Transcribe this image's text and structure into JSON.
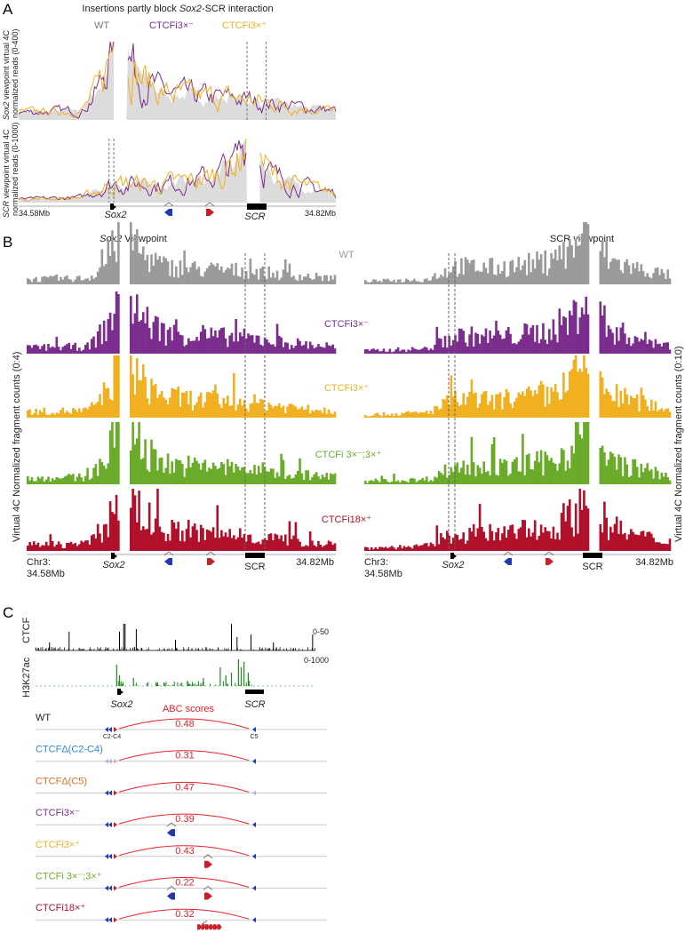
{
  "colors": {
    "wt": "#9a9a9a",
    "wt_fill": "#dcdcdc",
    "i3minus": "#7b2d8e",
    "i3plus": "#f0b020",
    "combo": "#6aab2a",
    "i18": "#b0102a",
    "abc": "#e8202a",
    "ctcf_blue": "#2438b0",
    "ctcf_red": "#c8202a",
    "d_c2c4": "#2a8ad0",
    "d_c5": "#e8682a",
    "h3k27ac": "#1e8a1e"
  },
  "panel_a": {
    "letter": "A",
    "title_pre": "Insertions partly block ",
    "title_italic": "Sox2",
    "title_post": "-SCR interaction",
    "legend": {
      "wt": "WT",
      "i3minus": "CTCFi3×⁻",
      "i3plus": "CTCFi3×⁺"
    },
    "ylabel_top_italic": "Sox2",
    "ylabel_top_rest": " viewpoint virtual 4C",
    "ylabel_top_2": "normalized reads (0-400)",
    "ylabel_bottom_italic": "SCR",
    "ylabel_bottom_rest": " viewpoint virtual 4C",
    "ylabel_bottom_2": "normalized reads (0-1000)",
    "x_start": "34.58Mb",
    "x_end": "34.82Mb",
    "gene_sox2": "Sox2",
    "gene_scr": "SCR"
  },
  "panel_b": {
    "letter": "B",
    "left_title_italic": "Sox2",
    "left_title_rest": " Viewpoint",
    "right_title": "SCR viewpoint",
    "tracks": [
      "WT",
      "CTCFi3×⁻",
      "CTCFi3×⁺",
      "CTCFi 3×⁻;3×⁺",
      "CTCFi18×⁺"
    ],
    "ylabel_left": "Virtual 4C Normalized fragment counts (0:4)",
    "ylabel_right": "Virtual 4C Normalized fragment counts (0:10)",
    "chr": "Chr3:",
    "x_start": "34.58Mb",
    "x_end": "34.82Mb",
    "gene_sox2": "Sox2",
    "gene_scr": "SCR"
  },
  "panel_c": {
    "letter": "C",
    "track_ctcf": "CTCF",
    "track_ctcf_range": "0-50",
    "track_h3k27ac": "H3K27ac",
    "track_h3k27ac_range": "0-1000",
    "gene_sox2": "Sox2",
    "gene_scr": "SCR",
    "abc_title": "ABC scores",
    "site_left": "C2-C4",
    "site_right": "C5",
    "rows": [
      {
        "label": "WT",
        "score": "0.48"
      },
      {
        "label": "CTCFΔ(C2-C4)",
        "score": "0.31"
      },
      {
        "label": "CTCFΔ(C5)",
        "score": "0.47"
      },
      {
        "label": "CTCFi3×⁻",
        "score": "0.39"
      },
      {
        "label": "CTCFi3×⁺",
        "score": "0.43"
      },
      {
        "label": "CTCFi 3×⁻;3×⁺",
        "score": "0.22"
      },
      {
        "label": "CTCFi18×⁺",
        "score": "0.32"
      }
    ]
  },
  "chart_data": [
    {
      "type": "area",
      "panel": "A-top",
      "title": "Insertions partly block Sox2-SCR interaction",
      "ylabel": "Sox2 viewpoint virtual 4C normalized reads",
      "ylim": [
        0,
        400
      ],
      "xlim_mb": [
        34.58,
        34.82
      ],
      "series": [
        "WT",
        "CTCFi3×⁻",
        "CTCFi3×⁺"
      ],
      "approx_profile_x_fraction": [
        0,
        0.2,
        0.26,
        0.3,
        0.34,
        0.37,
        0.45,
        0.55,
        0.7,
        0.85,
        1
      ],
      "approx_profile_rel": [
        0.1,
        0.12,
        0.45,
        1.0,
        1.0,
        0.6,
        0.35,
        0.3,
        0.27,
        0.18,
        0.12
      ]
    },
    {
      "type": "area",
      "panel": "A-bottom",
      "ylabel": "SCR viewpoint virtual 4C normalized reads",
      "ylim": [
        0,
        1000
      ],
      "xlim_mb": [
        34.58,
        34.82
      ],
      "series": [
        "WT",
        "CTCFi3×⁻",
        "CTCFi3×⁺"
      ],
      "approx_profile_x_fraction": [
        0,
        0.2,
        0.3,
        0.45,
        0.6,
        0.68,
        0.72,
        0.76,
        0.8,
        0.9,
        1
      ],
      "approx_profile_rel": [
        0.05,
        0.08,
        0.3,
        0.28,
        0.38,
        0.6,
        0.95,
        0.75,
        0.4,
        0.25,
        0.15
      ]
    },
    {
      "type": "bar",
      "panel": "B",
      "ylabel_left": "Virtual 4C Normalized fragment counts",
      "ylim_left": [
        0,
        4
      ],
      "ylim_right": [
        0,
        10
      ],
      "series": [
        "WT",
        "CTCFi3×⁻",
        "CTCFi3×⁺",
        "CTCFi 3×⁻;3×⁺",
        "CTCFi18×⁺"
      ]
    },
    {
      "type": "bar",
      "panel": "C",
      "title": "ABC scores",
      "categories": [
        "WT",
        "CTCFΔ(C2-C4)",
        "CTCFΔ(C5)",
        "CTCFi3×⁻",
        "CTCFi3×⁺",
        "CTCFi 3×⁻;3×⁺",
        "CTCFi18×⁺"
      ],
      "values": [
        0.48,
        0.31,
        0.47,
        0.39,
        0.43,
        0.22,
        0.32
      ]
    }
  ]
}
